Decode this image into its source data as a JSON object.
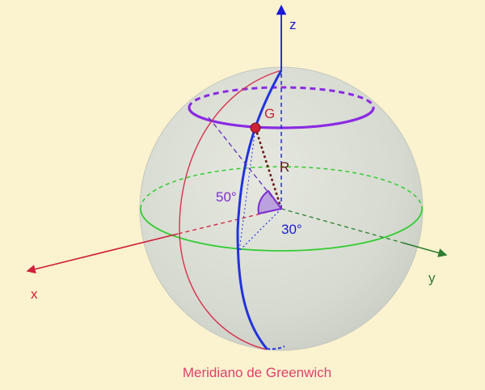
{
  "labels": {
    "z_axis": "z",
    "x_axis": "x",
    "y_axis": "y",
    "point_g": "G",
    "radius": "R",
    "latitude_angle": "50°",
    "longitude_angle": "30°",
    "caption": "Meridiano de Greenwich"
  },
  "colors": {
    "background": "#fbf2cf",
    "sphere_fill": "#d8dcd2",
    "z_axis": "#1a1ad6",
    "x_axis": "#d0203a",
    "y_axis": "#2e7d32",
    "equator": "#33cc33",
    "latitude_circle": "#8a2be2",
    "latitude_angle": "#7b2fd0",
    "meridian_blue": "#2233dd",
    "greenwich_meridian": "#d83050",
    "point_g": "#cc2236",
    "radius_line": "#6b1a1a",
    "caption": "#e0406a"
  }
}
